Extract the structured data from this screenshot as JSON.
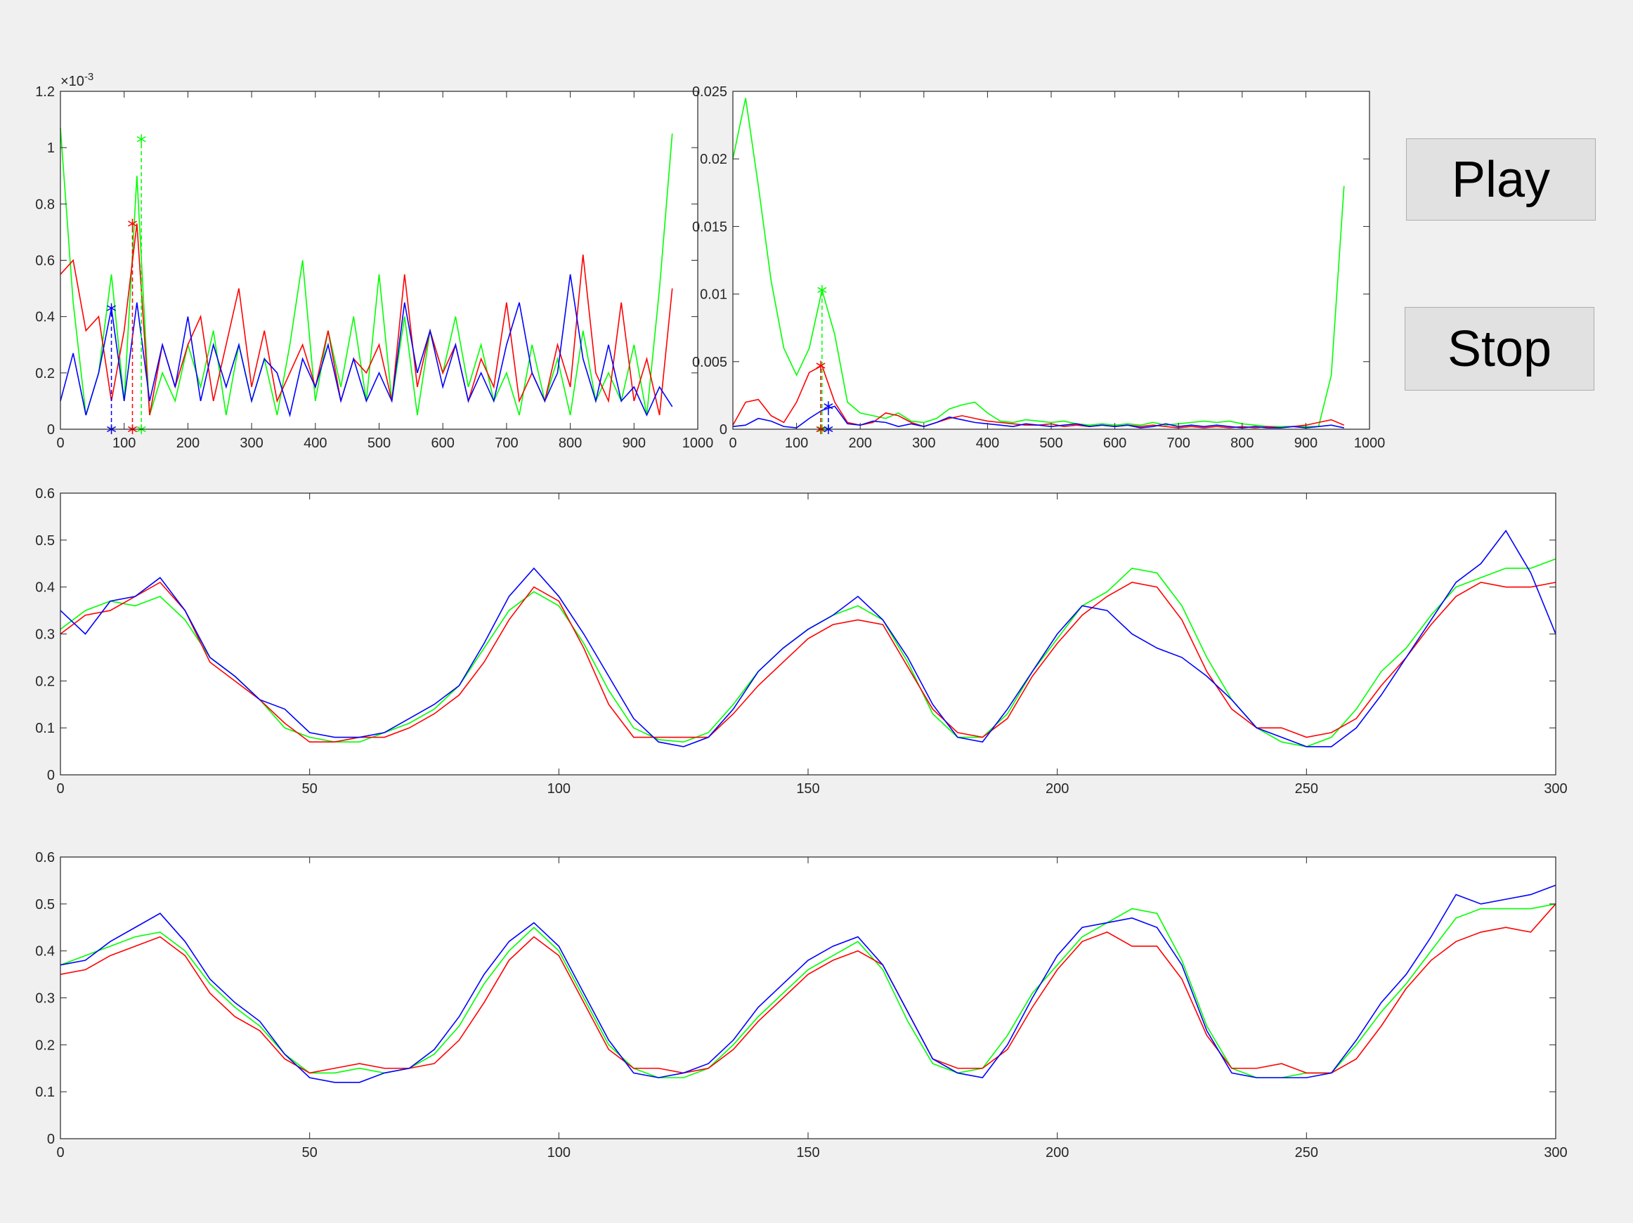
{
  "chart_data": [
    {
      "type": "line",
      "y_multiplier_label": "×10",
      "y_multiplier_exponent": "-3",
      "xlim": [
        0,
        1000
      ],
      "xticks": [
        0,
        100,
        200,
        300,
        400,
        500,
        600,
        700,
        800,
        900,
        1000
      ],
      "ylim": [
        0,
        0.0012
      ],
      "yticks": [
        0,
        {
          "value": 0.0002,
          "label": "0.2"
        },
        {
          "value": 0.0004,
          "label": "0.4"
        },
        {
          "value": 0.0006,
          "label": "0.6"
        },
        {
          "value": 0.0008,
          "label": "0.8"
        },
        {
          "value": 0.001,
          "label": "1"
        },
        {
          "value": 0.0012,
          "label": "1.2"
        }
      ],
      "x": [
        0,
        20,
        40,
        60,
        80,
        100,
        120,
        140,
        160,
        180,
        200,
        220,
        240,
        260,
        280,
        300,
        320,
        340,
        360,
        380,
        400,
        420,
        440,
        460,
        480,
        500,
        520,
        540,
        560,
        580,
        600,
        620,
        640,
        660,
        680,
        700,
        720,
        740,
        760,
        780,
        800,
        820,
        840,
        860,
        880,
        900,
        920,
        940,
        960
      ],
      "series": [
        {
          "color": "#00ff00",
          "values": [
            0.00107,
            0.00045,
            5e-05,
            0.0002,
            0.00055,
            0.0001,
            0.0009,
            5e-05,
            0.0002,
            0.0001,
            0.0003,
            0.00015,
            0.00035,
            5e-05,
            0.0003,
            0.0001,
            0.00025,
            5e-05,
            0.0003,
            0.0006,
            0.0001,
            0.00035,
            0.00015,
            0.0004,
            0.0001,
            0.00055,
            0.0001,
            0.0004,
            5e-05,
            0.00035,
            0.0002,
            0.0004,
            0.00015,
            0.0003,
            0.0001,
            0.0002,
            5e-05,
            0.0003,
            0.0001,
            0.00025,
            5e-05,
            0.00035,
            0.0001,
            0.0002,
            0.0001,
            0.0003,
            5e-05,
            0.0005,
            0.00105
          ]
        },
        {
          "color": "#ff0000",
          "values": [
            0.00055,
            0.0006,
            0.00035,
            0.0004,
            0.0001,
            0.00035,
            0.00073,
            5e-05,
            0.0003,
            0.00015,
            0.0003,
            0.0004,
            0.0001,
            0.0003,
            0.0005,
            0.00015,
            0.00035,
            0.0001,
            0.0002,
            0.0003,
            0.00015,
            0.00035,
            0.0001,
            0.00025,
            0.0002,
            0.0003,
            0.0001,
            0.00055,
            0.00015,
            0.00035,
            0.0002,
            0.0003,
            0.0001,
            0.00025,
            0.00015,
            0.00045,
            0.0001,
            0.0002,
            0.0001,
            0.0003,
            0.00015,
            0.00062,
            0.0002,
            0.0001,
            0.00045,
            0.0001,
            0.00025,
            5e-05,
            0.0005
          ]
        },
        {
          "color": "#0000ff",
          "values": [
            0.0001,
            0.00027,
            5e-05,
            0.0002,
            0.00043,
            0.0001,
            0.00045,
            0.0001,
            0.0003,
            0.00015,
            0.0004,
            0.0001,
            0.0003,
            0.00015,
            0.0003,
            0.0001,
            0.00025,
            0.0002,
            5e-05,
            0.00025,
            0.00015,
            0.0003,
            0.0001,
            0.00025,
            0.0001,
            0.0002,
            0.0001,
            0.00045,
            0.0002,
            0.00035,
            0.00015,
            0.0003,
            0.0001,
            0.0002,
            0.0001,
            0.0003,
            0.00045,
            0.0002,
            0.0001,
            0.0002,
            0.00055,
            0.00025,
            0.0001,
            0.0003,
            0.0001,
            0.00015,
            5e-05,
            0.00015,
            8e-05
          ]
        }
      ],
      "peaks": [
        {
          "color": "#0000ff",
          "x": 80,
          "y": 0.00043
        },
        {
          "color": "#ff0000",
          "x": 113,
          "y": 0.00073
        },
        {
          "color": "#00ff00",
          "x": 127,
          "y": 0.00103
        }
      ]
    },
    {
      "type": "line",
      "xlim": [
        0,
        1000
      ],
      "xticks": [
        0,
        100,
        200,
        300,
        400,
        500,
        600,
        700,
        800,
        900,
        1000
      ],
      "ylim": [
        0,
        0.025
      ],
      "yticks": [
        0,
        0.005,
        0.01,
        0.015,
        0.02,
        0.025
      ],
      "x": [
        0,
        20,
        40,
        60,
        80,
        100,
        120,
        140,
        160,
        180,
        200,
        220,
        240,
        260,
        280,
        300,
        320,
        340,
        360,
        380,
        400,
        420,
        440,
        460,
        480,
        500,
        520,
        540,
        560,
        580,
        600,
        620,
        640,
        660,
        680,
        700,
        720,
        740,
        760,
        780,
        800,
        820,
        840,
        860,
        880,
        900,
        920,
        940,
        960
      ],
      "series": [
        {
          "color": "#00ff00",
          "values": [
            0.02,
            0.0245,
            0.018,
            0.011,
            0.006,
            0.004,
            0.006,
            0.0103,
            0.007,
            0.002,
            0.0012,
            0.001,
            0.0008,
            0.0012,
            0.0006,
            0.0005,
            0.0008,
            0.0015,
            0.0018,
            0.002,
            0.0012,
            0.0006,
            0.0005,
            0.0007,
            0.0006,
            0.0005,
            0.0006,
            0.0004,
            0.0003,
            0.0004,
            0.0003,
            0.0004,
            0.0003,
            0.0005,
            0.0003,
            0.0004,
            0.0005,
            0.0006,
            0.0005,
            0.0006,
            0.0004,
            0.0003,
            0.0002,
            0.0002,
            0.0002,
            0.0002,
            0.0002,
            0.004,
            0.018
          ]
        },
        {
          "color": "#ff0000",
          "values": [
            0.0003,
            0.002,
            0.0022,
            0.001,
            0.0005,
            0.002,
            0.0042,
            0.0047,
            0.002,
            0.0005,
            0.0003,
            0.0005,
            0.0012,
            0.001,
            0.0005,
            0.0002,
            0.0005,
            0.0008,
            0.001,
            0.0008,
            0.0006,
            0.0005,
            0.0004,
            0.0003,
            0.0003,
            0.0004,
            0.0002,
            0.0003,
            0.0002,
            0.0003,
            0.0002,
            0.0003,
            0.0002,
            0.0003,
            0.0002,
            0.0001,
            0.0002,
            0.0001,
            0.0002,
            0.0001,
            0.0002,
            0.0001,
            0.0002,
            0.0001,
            0.0002,
            0.0003,
            0.0005,
            0.0007,
            0.0003
          ]
        },
        {
          "color": "#0000ff",
          "values": [
            0.0002,
            0.0003,
            0.0008,
            0.0006,
            0.0002,
            0.0001,
            0.0008,
            0.0014,
            0.0017,
            0.0004,
            0.0003,
            0.0006,
            0.0005,
            0.0002,
            0.0004,
            0.0002,
            0.0005,
            0.0009,
            0.0007,
            0.0005,
            0.0004,
            0.0003,
            0.0002,
            0.0004,
            0.0003,
            0.0002,
            0.0003,
            0.0004,
            0.0002,
            0.0003,
            0.0002,
            0.0003,
            0.0001,
            0.0002,
            0.0004,
            0.0002,
            0.0003,
            0.0002,
            0.0003,
            0.0002,
            0.0001,
            0.0002,
            0.0001,
            0.0001,
            0.0002,
            0.0001,
            0.0002,
            0.0003,
            0.0001
          ]
        }
      ],
      "peaks": [
        {
          "color": "#00ff00",
          "x": 140,
          "y": 0.0103
        },
        {
          "color": "#ff0000",
          "x": 138,
          "y": 0.0047
        },
        {
          "color": "#0000ff",
          "x": 150,
          "y": 0.0017
        }
      ]
    },
    {
      "type": "line",
      "xlim": [
        0,
        300
      ],
      "xticks": [
        0,
        50,
        100,
        150,
        200,
        250,
        300
      ],
      "ylim": [
        0,
        0.6
      ],
      "yticks": [
        0,
        0.1,
        0.2,
        0.3,
        0.4,
        0.5,
        0.6
      ],
      "x": [
        0,
        5,
        10,
        15,
        20,
        25,
        30,
        35,
        40,
        45,
        50,
        55,
        60,
        65,
        70,
        75,
        80,
        85,
        90,
        95,
        100,
        105,
        110,
        115,
        120,
        125,
        130,
        135,
        140,
        145,
        150,
        155,
        160,
        165,
        170,
        175,
        180,
        185,
        190,
        195,
        200,
        205,
        210,
        215,
        220,
        225,
        230,
        235,
        240,
        245,
        250,
        255,
        260,
        265,
        270,
        275,
        280,
        285,
        290,
        295,
        300
      ],
      "series": [
        {
          "color": "#00ff00",
          "values": [
            0.31,
            0.35,
            0.37,
            0.36,
            0.38,
            0.33,
            0.25,
            0.21,
            0.16,
            0.1,
            0.08,
            0.07,
            0.07,
            0.09,
            0.11,
            0.14,
            0.19,
            0.27,
            0.35,
            0.39,
            0.36,
            0.28,
            0.18,
            0.1,
            0.075,
            0.07,
            0.09,
            0.15,
            0.22,
            0.27,
            0.31,
            0.34,
            0.36,
            0.33,
            0.24,
            0.13,
            0.08,
            0.08,
            0.13,
            0.22,
            0.29,
            0.36,
            0.39,
            0.44,
            0.43,
            0.36,
            0.25,
            0.16,
            0.1,
            0.07,
            0.06,
            0.08,
            0.14,
            0.22,
            0.27,
            0.34,
            0.4,
            0.42,
            0.44,
            0.44,
            0.46
          ]
        },
        {
          "color": "#ff0000",
          "values": [
            0.3,
            0.34,
            0.35,
            0.38,
            0.41,
            0.35,
            0.24,
            0.2,
            0.16,
            0.11,
            0.07,
            0.07,
            0.08,
            0.08,
            0.1,
            0.13,
            0.17,
            0.24,
            0.33,
            0.4,
            0.37,
            0.27,
            0.15,
            0.08,
            0.08,
            0.08,
            0.08,
            0.13,
            0.19,
            0.24,
            0.29,
            0.32,
            0.33,
            0.32,
            0.23,
            0.14,
            0.09,
            0.08,
            0.12,
            0.21,
            0.28,
            0.34,
            0.38,
            0.41,
            0.4,
            0.33,
            0.22,
            0.14,
            0.1,
            0.1,
            0.08,
            0.09,
            0.12,
            0.19,
            0.25,
            0.32,
            0.38,
            0.41,
            0.4,
            0.4,
            0.41
          ]
        },
        {
          "color": "#0000ff",
          "values": [
            0.35,
            0.3,
            0.37,
            0.38,
            0.42,
            0.35,
            0.25,
            0.21,
            0.16,
            0.14,
            0.09,
            0.08,
            0.08,
            0.09,
            0.12,
            0.15,
            0.19,
            0.28,
            0.38,
            0.44,
            0.38,
            0.3,
            0.21,
            0.12,
            0.07,
            0.06,
            0.08,
            0.14,
            0.22,
            0.27,
            0.31,
            0.34,
            0.38,
            0.33,
            0.25,
            0.15,
            0.08,
            0.07,
            0.14,
            0.22,
            0.3,
            0.36,
            0.35,
            0.3,
            0.27,
            0.25,
            0.21,
            0.16,
            0.1,
            0.08,
            0.06,
            0.06,
            0.1,
            0.17,
            0.25,
            0.33,
            0.41,
            0.45,
            0.52,
            0.43,
            0.3
          ]
        }
      ]
    },
    {
      "type": "line",
      "xlim": [
        0,
        300
      ],
      "xticks": [
        0,
        50,
        100,
        150,
        200,
        250,
        300
      ],
      "ylim": [
        0,
        0.6
      ],
      "yticks": [
        0,
        0.1,
        0.2,
        0.3,
        0.4,
        0.5,
        0.6
      ],
      "x": [
        0,
        5,
        10,
        15,
        20,
        25,
        30,
        35,
        40,
        45,
        50,
        55,
        60,
        65,
        70,
        75,
        80,
        85,
        90,
        95,
        100,
        105,
        110,
        115,
        120,
        125,
        130,
        135,
        140,
        145,
        150,
        155,
        160,
        165,
        170,
        175,
        180,
        185,
        190,
        195,
        200,
        205,
        210,
        215,
        220,
        225,
        230,
        235,
        240,
        245,
        250,
        255,
        260,
        265,
        270,
        275,
        280,
        285,
        290,
        295,
        300
      ],
      "series": [
        {
          "color": "#00ff00",
          "values": [
            0.37,
            0.39,
            0.41,
            0.43,
            0.44,
            0.4,
            0.33,
            0.28,
            0.24,
            0.18,
            0.14,
            0.14,
            0.15,
            0.14,
            0.15,
            0.18,
            0.24,
            0.33,
            0.4,
            0.45,
            0.4,
            0.3,
            0.2,
            0.15,
            0.13,
            0.13,
            0.15,
            0.2,
            0.26,
            0.31,
            0.36,
            0.39,
            0.42,
            0.36,
            0.25,
            0.16,
            0.14,
            0.15,
            0.22,
            0.31,
            0.37,
            0.43,
            0.46,
            0.49,
            0.48,
            0.38,
            0.24,
            0.15,
            0.13,
            0.13,
            0.14,
            0.14,
            0.2,
            0.27,
            0.33,
            0.4,
            0.47,
            0.49,
            0.49,
            0.49,
            0.5
          ]
        },
        {
          "color": "#ff0000",
          "values": [
            0.35,
            0.36,
            0.39,
            0.41,
            0.43,
            0.39,
            0.31,
            0.26,
            0.23,
            0.17,
            0.14,
            0.15,
            0.16,
            0.15,
            0.15,
            0.16,
            0.21,
            0.29,
            0.38,
            0.43,
            0.39,
            0.29,
            0.19,
            0.15,
            0.15,
            0.14,
            0.15,
            0.19,
            0.25,
            0.3,
            0.35,
            0.38,
            0.4,
            0.37,
            0.27,
            0.17,
            0.15,
            0.15,
            0.19,
            0.28,
            0.36,
            0.42,
            0.44,
            0.41,
            0.41,
            0.34,
            0.22,
            0.15,
            0.15,
            0.16,
            0.14,
            0.14,
            0.17,
            0.24,
            0.32,
            0.38,
            0.42,
            0.44,
            0.45,
            0.44,
            0.5
          ]
        },
        {
          "color": "#0000ff",
          "values": [
            0.37,
            0.38,
            0.42,
            0.45,
            0.48,
            0.42,
            0.34,
            0.29,
            0.25,
            0.18,
            0.13,
            0.12,
            0.12,
            0.14,
            0.15,
            0.19,
            0.26,
            0.35,
            0.42,
            0.46,
            0.41,
            0.31,
            0.21,
            0.14,
            0.13,
            0.14,
            0.16,
            0.21,
            0.28,
            0.33,
            0.38,
            0.41,
            0.43,
            0.37,
            0.27,
            0.17,
            0.14,
            0.13,
            0.2,
            0.3,
            0.39,
            0.45,
            0.46,
            0.47,
            0.45,
            0.37,
            0.23,
            0.14,
            0.13,
            0.13,
            0.13,
            0.14,
            0.21,
            0.29,
            0.35,
            0.43,
            0.52,
            0.5,
            0.51,
            0.52,
            0.54
          ]
        }
      ]
    }
  ],
  "buttons": [
    "Play",
    "Stop"
  ]
}
